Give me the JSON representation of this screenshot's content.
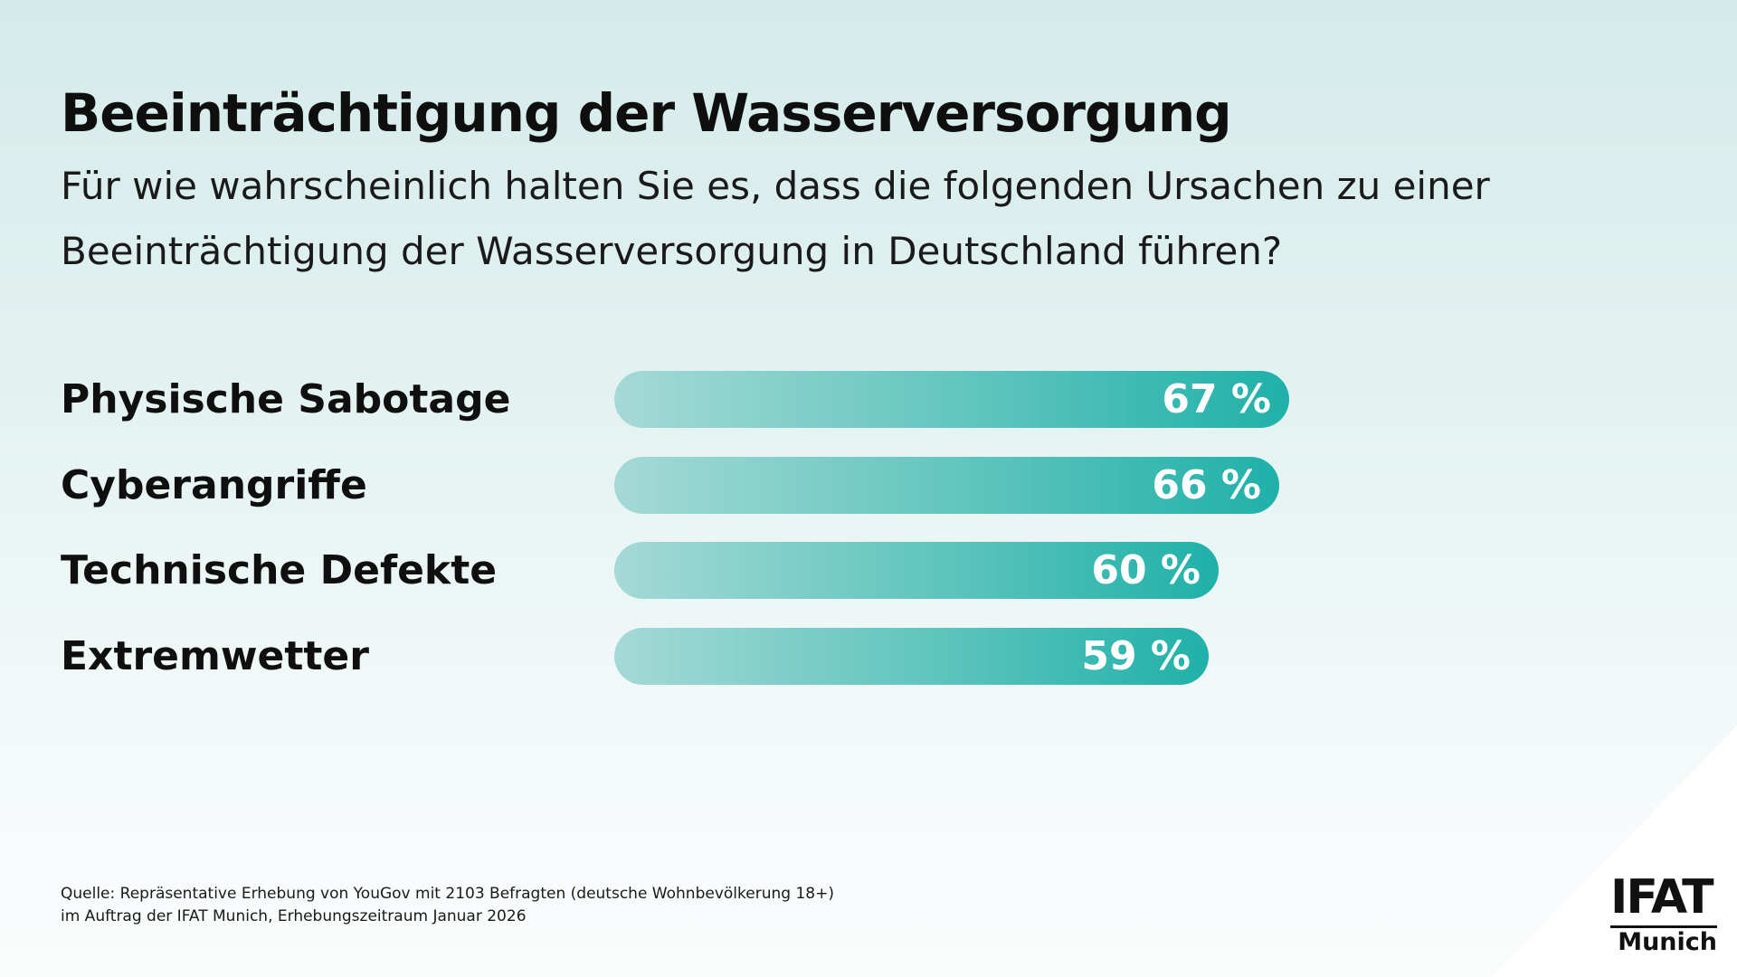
{
  "title": "Beeinträchtigung der Wasserversorgung",
  "subtitle": {
    "line1": "Für wie wahrscheinlich halten Sie es, dass die folgenden Ursachen zu einer",
    "line2": "Beeinträchtigung der Wasserversorgung in Deutschland führen?"
  },
  "chart_data": {
    "type": "bar",
    "orientation": "horizontal",
    "categories": [
      "Physische Sabotage",
      "Cyberangriffe",
      "Technische Defekte",
      "Extremwetter"
    ],
    "values": [
      67,
      66,
      60,
      59
    ],
    "value_labels": [
      "67 %",
      "66 %",
      "60 %",
      "59 %"
    ],
    "unit": "%",
    "title": "Beeinträchtigung der Wasserversorgung",
    "xlabel": "",
    "ylabel": "",
    "xlim": [
      0,
      100
    ],
    "grid": false,
    "legend": "none"
  },
  "source": {
    "line1": "Quelle: Repräsentative Erhebung von YouGov mit 2103 Befragten (deutsche Wohnbevölkerung 18+)",
    "line2": "im Auftrag der IFAT Munich, Erhebungszeitraum Januar 2026"
  },
  "logo": {
    "top": "IFAT",
    "bottom": "Munich"
  },
  "colors": {
    "bar_start": "#a5d9d6",
    "bar_end": "#1fb1a8",
    "bar_label": "#ffffff",
    "text": "#0f0f0f"
  }
}
